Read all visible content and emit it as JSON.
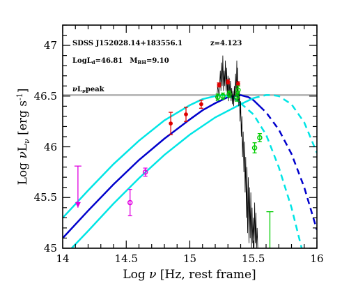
{
  "chart_data": {
    "type": "scatter",
    "title": "",
    "xlabel_main": "Log ",
    "xlabel_greek": "ν",
    "xlabel_rest": " [Hz, rest frame]",
    "ylabel_main": "Log ",
    "ylabel_greek": "ν",
    "ylabel_L": "L",
    "ylabel_sub": "ν",
    "ylabel_unit": " [erg s",
    "ylabel_exp": "-1",
    "ylabel_close": "]",
    "xlim": [
      14,
      16
    ],
    "ylim": [
      45,
      47.2
    ],
    "xticks": [
      "14",
      "14.5",
      "15",
      "15.5",
      "16"
    ],
    "yticks": [
      "45",
      "45.5",
      "46",
      "46.5",
      "47"
    ],
    "annotations": {
      "object": "SDSS J152028.14+183556.1",
      "redshift": "z=4.123",
      "logld_prefix": "LogL",
      "logld_sub": "d",
      "logld_value": "=46.81",
      "mbh_prefix": "M",
      "mbh_sub": "BH",
      "mbh_value": "=9.10",
      "peak_nu": "ν",
      "peak_L": "L",
      "peak_sub": "ν",
      "peak_text": "peak"
    },
    "peak_level": 46.51,
    "colors": {
      "disk_model": "#0000cc",
      "disk_bounds": "#00e5e5",
      "photometry_red": "#e00000",
      "photometry_magenta": "#e000e0",
      "photometry_green": "#00cc00",
      "peak_line": "#b0b0b0",
      "spectrum": "#000000"
    },
    "series": [
      {
        "style": "solid",
        "color_key": "disk_model",
        "points": [
          [
            14,
            45.1
          ],
          [
            14.2,
            45.37
          ],
          [
            14.4,
            45.63
          ],
          [
            14.6,
            45.87
          ],
          [
            14.8,
            46.08
          ],
          [
            15.0,
            46.27
          ],
          [
            15.1,
            46.36
          ],
          [
            15.2,
            46.43
          ],
          [
            15.3,
            46.49
          ],
          [
            15.4,
            46.51
          ],
          [
            15.46,
            46.49
          ],
          [
            15.5,
            46.46
          ],
          [
            15.55,
            46.4
          ]
        ]
      },
      {
        "style": "dashed",
        "color_key": "disk_model",
        "points": [
          [
            15.55,
            46.4
          ],
          [
            15.6,
            46.34
          ],
          [
            15.7,
            46.17
          ],
          [
            15.8,
            45.93
          ],
          [
            15.9,
            45.6
          ],
          [
            16.0,
            45.18
          ]
        ]
      },
      {
        "style": "solid",
        "color_key": "disk_bounds",
        "points": [
          [
            14,
            45.3
          ],
          [
            14.2,
            45.57
          ],
          [
            14.4,
            45.83
          ],
          [
            14.6,
            46.06
          ],
          [
            14.8,
            46.26
          ],
          [
            15.0,
            46.41
          ],
          [
            15.1,
            46.47
          ],
          [
            15.2,
            46.5
          ],
          [
            15.25,
            46.51
          ],
          [
            15.3,
            46.5
          ],
          [
            15.35,
            46.48
          ],
          [
            15.4,
            46.43
          ]
        ]
      },
      {
        "style": "dashed",
        "color_key": "disk_bounds",
        "points": [
          [
            15.4,
            46.43
          ],
          [
            15.5,
            46.32
          ],
          [
            15.6,
            46.12
          ],
          [
            15.7,
            45.8
          ],
          [
            15.8,
            45.4
          ],
          [
            15.88,
            45.0
          ]
        ]
      },
      {
        "style": "solid",
        "color_key": "disk_bounds",
        "points": [
          [
            14.07,
            45.0
          ],
          [
            14.2,
            45.17
          ],
          [
            14.4,
            45.44
          ],
          [
            14.6,
            45.69
          ],
          [
            14.8,
            45.92
          ],
          [
            15.0,
            46.12
          ],
          [
            15.2,
            46.29
          ],
          [
            15.4,
            46.42
          ],
          [
            15.5,
            46.48
          ]
        ]
      },
      {
        "style": "dashed",
        "color_key": "disk_bounds",
        "points": [
          [
            15.5,
            46.48
          ],
          [
            15.6,
            46.51
          ],
          [
            15.65,
            46.51
          ],
          [
            15.7,
            46.5
          ],
          [
            15.8,
            46.42
          ],
          [
            15.9,
            46.24
          ],
          [
            16.0,
            45.94
          ]
        ]
      }
    ],
    "photometry": [
      {
        "color_key": "photometry_red",
        "x": 14.85,
        "y": 46.23,
        "err": 0.11
      },
      {
        "color_key": "photometry_red",
        "x": 14.97,
        "y": 46.32,
        "err": 0.07
      },
      {
        "color_key": "photometry_red",
        "x": 15.09,
        "y": 46.42,
        "err": 0.04
      },
      {
        "color_key": "photometry_red",
        "x": 15.23,
        "y": 46.61,
        "err": 0.02
      },
      {
        "color_key": "photometry_red",
        "x": 15.3,
        "y": 46.64,
        "err": 0.02
      },
      {
        "color_key": "photometry_red",
        "x": 15.38,
        "y": 46.62,
        "err": 0.02
      },
      {
        "color_key": "photometry_magenta",
        "x": 14.53,
        "y": 45.45,
        "err": 0.13,
        "open": true
      },
      {
        "color_key": "photometry_magenta",
        "x": 14.65,
        "y": 45.75,
        "err": 0.04,
        "open": true
      },
      {
        "color_key": "photometry_green",
        "x": 15.22,
        "y": 46.49,
        "err": 0.03,
        "open": true
      },
      {
        "color_key": "photometry_green",
        "x": 15.26,
        "y": 46.5,
        "err": 0.03,
        "open": true
      },
      {
        "color_key": "photometry_green",
        "x": 15.31,
        "y": 46.52,
        "err": 0.03,
        "open": true
      },
      {
        "color_key": "photometry_green",
        "x": 15.37,
        "y": 46.49,
        "err": 0.04,
        "open": true
      },
      {
        "color_key": "photometry_green",
        "x": 15.38,
        "y": 46.56,
        "err": 0.04,
        "open": true
      },
      {
        "color_key": "photometry_green",
        "x": 15.51,
        "y": 45.99,
        "err": 0.05,
        "open": true
      },
      {
        "color_key": "photometry_green",
        "x": 15.55,
        "y": 46.09,
        "err": 0.04,
        "open": true
      }
    ],
    "upper_limits": [
      {
        "color_key": "photometry_magenta",
        "x": 14.12,
        "y_top": 45.81,
        "y_bottom": 45.4
      },
      {
        "color_key": "photometry_green",
        "x": 15.63,
        "y_top": 45.36,
        "y_bottom": 45.0
      }
    ],
    "spectrum_points": [
      [
        15.21,
        46.45
      ],
      [
        15.22,
        46.6
      ],
      [
        15.23,
        46.5
      ],
      [
        15.24,
        46.75
      ],
      [
        15.245,
        46.55
      ],
      [
        15.25,
        46.83
      ],
      [
        15.255,
        46.6
      ],
      [
        15.26,
        46.9
      ],
      [
        15.265,
        46.55
      ],
      [
        15.27,
        46.75
      ],
      [
        15.275,
        46.6
      ],
      [
        15.28,
        46.85
      ],
      [
        15.285,
        46.55
      ],
      [
        15.29,
        46.78
      ],
      [
        15.295,
        46.5
      ],
      [
        15.3,
        46.7
      ],
      [
        15.305,
        46.45
      ],
      [
        15.31,
        46.68
      ],
      [
        15.315,
        46.48
      ],
      [
        15.32,
        46.65
      ],
      [
        15.325,
        46.45
      ],
      [
        15.33,
        46.58
      ],
      [
        15.335,
        46.42
      ],
      [
        15.34,
        46.55
      ],
      [
        15.345,
        46.4
      ],
      [
        15.35,
        46.6
      ],
      [
        15.355,
        46.45
      ],
      [
        15.36,
        46.72
      ],
      [
        15.365,
        46.5
      ],
      [
        15.37,
        46.85
      ],
      [
        15.372,
        46.55
      ],
      [
        15.375,
        46.78
      ],
      [
        15.378,
        46.45
      ],
      [
        15.38,
        46.65
      ],
      [
        15.385,
        46.4
      ],
      [
        15.39,
        46.55
      ],
      [
        15.395,
        46.25
      ],
      [
        15.4,
        46.45
      ],
      [
        15.405,
        46.1
      ],
      [
        15.41,
        46.3
      ],
      [
        15.415,
        45.9
      ],
      [
        15.42,
        46.15
      ],
      [
        15.425,
        45.75
      ],
      [
        15.43,
        46.05
      ],
      [
        15.435,
        45.55
      ],
      [
        15.44,
        45.9
      ],
      [
        15.445,
        45.3
      ],
      [
        15.45,
        45.8
      ],
      [
        15.455,
        45.15
      ],
      [
        15.46,
        45.7
      ],
      [
        15.465,
        45.05
      ],
      [
        15.47,
        45.6
      ],
      [
        15.475,
        45.1
      ],
      [
        15.48,
        45.55
      ],
      [
        15.485,
        45.0
      ],
      [
        15.49,
        45.4
      ],
      [
        15.495,
        45.05
      ],
      [
        15.5,
        45.3
      ],
      [
        15.505,
        45.0
      ],
      [
        15.51,
        45.45
      ],
      [
        15.515,
        45.05
      ],
      [
        15.52,
        45.35
      ],
      [
        15.525,
        45.0
      ],
      [
        15.53,
        45.2
      ],
      [
        15.535,
        45.0
      ]
    ]
  }
}
